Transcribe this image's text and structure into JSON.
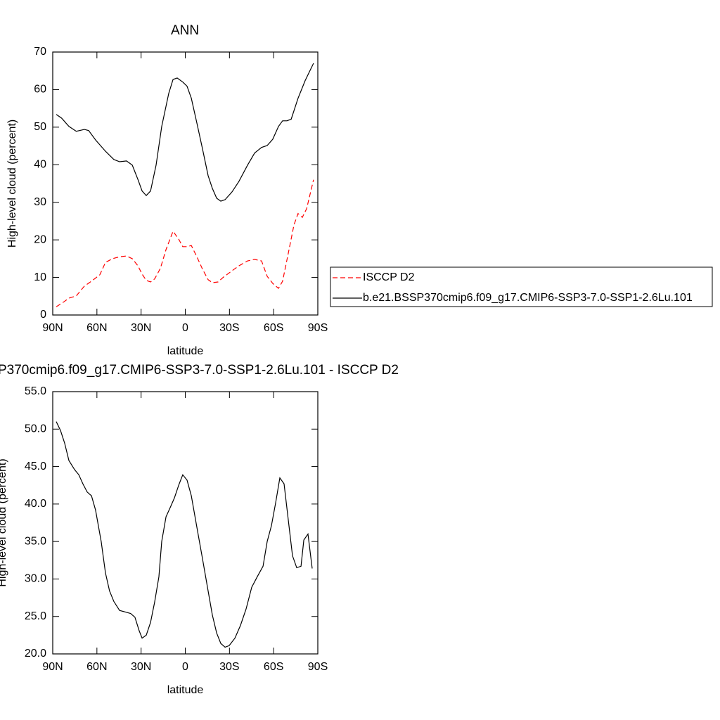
{
  "chart_data": [
    {
      "type": "line",
      "title": "ANN",
      "x_label": "latitude",
      "y_label": "High-level cloud (percent)",
      "xlim": [
        90,
        -90
      ],
      "xticks": [
        {
          "value": 90,
          "label": "90N"
        },
        {
          "value": 60,
          "label": "60N"
        },
        {
          "value": 30,
          "label": "30N"
        },
        0,
        {
          "value": -30,
          "label": "30S"
        },
        {
          "value": -60,
          "label": "60S"
        },
        {
          "value": -90,
          "label": "90S"
        }
      ],
      "ylim": [
        0,
        70
      ],
      "yticks": [
        0,
        10,
        20,
        30,
        40,
        50,
        60,
        70
      ],
      "legend": "right",
      "series": [
        {
          "name": "ISCCP D2",
          "color": "#ff0000",
          "dash": true,
          "x": [
            87.6,
            82.8,
            79,
            74,
            68.5,
            63.7,
            58,
            54.2,
            49.4,
            44.6,
            39.9,
            36,
            32.2,
            29.3,
            26.5,
            23.6,
            20.8,
            16.9,
            13.1,
            8.3,
            4.5,
            1.7,
            -1.2,
            -4.1,
            -7.9,
            -11.7,
            -15.5,
            -18.4,
            -22.2,
            -26,
            -31.8,
            -36.5,
            -42.3,
            -47.1,
            -51.8,
            -55.6,
            -59.4,
            -63.3,
            -66.1,
            -70,
            -73.8,
            -76.6,
            -79.5,
            -82.4,
            -87.1
          ],
          "values": [
            2.2,
            3.4,
            4.5,
            5.1,
            7.7,
            9.0,
            10.7,
            14.0,
            15.0,
            15.5,
            15.7,
            15.0,
            13.1,
            10.9,
            9.2,
            8.8,
            9.6,
            12.4,
            17.4,
            22.3,
            20.2,
            18.2,
            18.2,
            18.5,
            15.5,
            12.2,
            9.4,
            8.6,
            8.8,
            10.1,
            11.8,
            13.1,
            14.4,
            14.8,
            14.4,
            10.3,
            8.4,
            7.1,
            9.0,
            16.5,
            24.0,
            27.0,
            26.0,
            28.3,
            36.0
          ]
        },
        {
          "name": "b.e21.BSSP370cmip6.f09_g17.CMIP6-SSP3-7.0-SSP1-2.6Lu.101",
          "color": "#000000",
          "dash": false,
          "x": [
            87.6,
            84,
            79,
            74,
            68.5,
            65.6,
            60.9,
            54.2,
            48.5,
            44.6,
            39.9,
            36,
            32.2,
            29.3,
            26.5,
            23.6,
            19.8,
            16,
            11.2,
            8.3,
            5.5,
            1.7,
            -1.2,
            -4.1,
            -7.9,
            -11.7,
            -15.5,
            -18.4,
            -21.3,
            -24.1,
            -27,
            -31.8,
            -36.5,
            -42.3,
            -47.1,
            -51.8,
            -55.6,
            -59.4,
            -63.3,
            -66.1,
            -69,
            -71.9,
            -76.6,
            -81.4,
            -87.1
          ],
          "values": [
            53.4,
            52.4,
            50.2,
            48.9,
            49.4,
            49.1,
            46.6,
            43.6,
            41.4,
            40.8,
            41.0,
            39.9,
            36.1,
            33.0,
            31.8,
            33.0,
            39.9,
            50.2,
            59.0,
            62.7,
            63.1,
            62.0,
            60.9,
            57.7,
            51.1,
            44.2,
            37.1,
            33.7,
            31.1,
            30.3,
            30.7,
            32.8,
            35.6,
            39.9,
            43.1,
            44.6,
            45.1,
            46.8,
            50.2,
            51.7,
            51.7,
            52.1,
            57.7,
            62.4,
            67.0
          ]
        }
      ]
    },
    {
      "type": "line",
      "title": "P370cmip6.f09_g17.CMIP6-SSP3-7.0-SSP1-2.6Lu.101 - ISCCP D2",
      "x_label": "latitude",
      "y_label": "High-level cloud (percent)",
      "xlim": [
        90,
        -90
      ],
      "xticks": [
        {
          "value": 90,
          "label": "90N"
        },
        {
          "value": 60,
          "label": "60N"
        },
        {
          "value": 30,
          "label": "30N"
        },
        0,
        {
          "value": -30,
          "label": "30S"
        },
        {
          "value": -60,
          "label": "60S"
        },
        {
          "value": -90,
          "label": "90S"
        }
      ],
      "ylim": [
        20,
        55
      ],
      "yticks": [
        {
          "value": 20,
          "label": "20.0"
        },
        {
          "value": 25,
          "label": "25.0"
        },
        {
          "value": 30,
          "label": "30.0"
        },
        {
          "value": 35,
          "label": "35.0"
        },
        {
          "value": 40,
          "label": "40.0"
        },
        {
          "value": 45,
          "label": "45.0"
        },
        {
          "value": 50,
          "label": "50.0"
        },
        {
          "value": 55,
          "label": "55.0"
        }
      ],
      "series": [
        {
          "color": "#000000",
          "dash": false,
          "x": [
            87.6,
            84.7,
            81.9,
            79,
            75.2,
            72.3,
            69.5,
            66.6,
            63.7,
            60.9,
            57.1,
            54.2,
            51.4,
            48.5,
            44.6,
            40.8,
            37.1,
            34.2,
            31.3,
            29.3,
            26.5,
            23.6,
            20.8,
            17.9,
            16,
            13.1,
            10.3,
            7.4,
            4.5,
            1.7,
            -1.2,
            -4.1,
            -7.9,
            -11.7,
            -15.5,
            -18.4,
            -21.3,
            -24.1,
            -27,
            -29.8,
            -33.7,
            -37.5,
            -41.3,
            -45.1,
            -48.9,
            -52.8,
            -55.6,
            -58.5,
            -61.4,
            -64.2,
            -67.1,
            -70,
            -72.8,
            -75.7,
            -78.6,
            -80.5,
            -83.3,
            -86.2
          ],
          "values": [
            51.0,
            49.8,
            48.1,
            45.8,
            44.6,
            43.9,
            42.7,
            41.6,
            41.1,
            39.2,
            35.0,
            30.8,
            28.4,
            27.0,
            25.8,
            25.6,
            25.4,
            24.9,
            23.1,
            22.1,
            22.5,
            24.2,
            26.9,
            30.3,
            35.0,
            38.3,
            39.5,
            40.8,
            42.5,
            43.9,
            43.2,
            41.1,
            36.9,
            32.7,
            28.4,
            25.2,
            22.8,
            21.4,
            20.9,
            21.1,
            22.1,
            23.8,
            26.0,
            28.9,
            30.3,
            31.7,
            35.0,
            37.1,
            40.2,
            43.5,
            42.7,
            37.8,
            33.1,
            31.5,
            31.7,
            35.2,
            36.0,
            31.4
          ]
        }
      ]
    }
  ]
}
